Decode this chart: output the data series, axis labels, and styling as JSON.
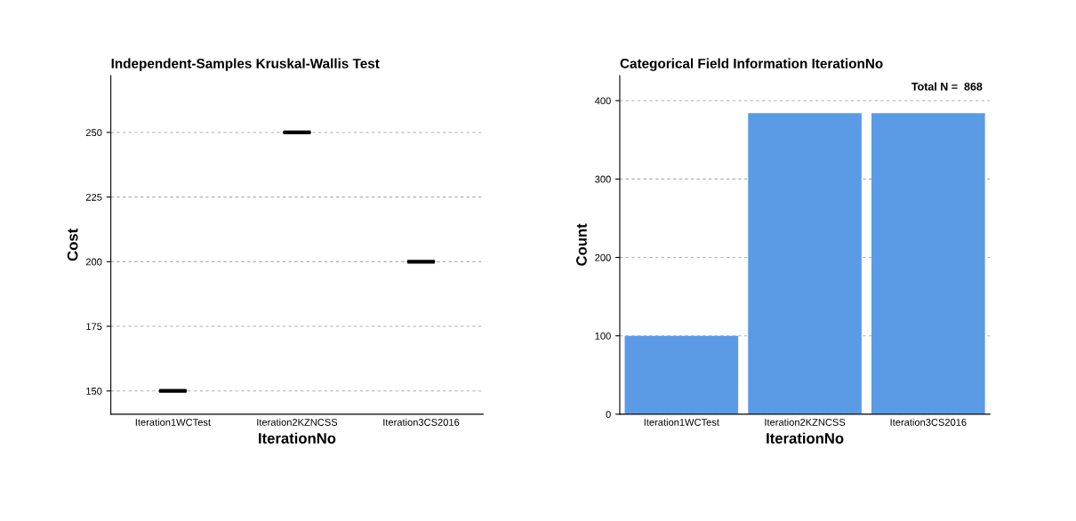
{
  "chart_data": [
    {
      "type": "box",
      "title": "Independent-Samples Kruskal-Wallis Test",
      "xlabel": "IterationNo",
      "ylabel": "Cost",
      "categories": [
        "Iteration1WCTest",
        "Iteration2KZNCSS",
        "Iteration3CS2016"
      ],
      "boxes": [
        {
          "low": 150,
          "q1": 150,
          "median": 150,
          "q3": 150,
          "high": 150
        },
        {
          "low": 250,
          "q1": 250,
          "median": 250,
          "q3": 250,
          "high": 250
        },
        {
          "low": 200,
          "q1": 200,
          "median": 200,
          "q3": 200,
          "high": 200
        }
      ],
      "ylim": [
        141,
        272
      ],
      "yticks": [
        150,
        175,
        200,
        225,
        250
      ],
      "grid": "y",
      "legend": false
    },
    {
      "type": "bar",
      "title": "Categorical Field Information IterationNo",
      "xlabel": "IterationNo",
      "ylabel": "Count",
      "categories": [
        "Iteration1WCTest",
        "Iteration2KZNCSS",
        "Iteration3CS2016"
      ],
      "values": [
        100,
        384,
        384
      ],
      "color": "#5b9be6",
      "ylim": [
        0,
        432
      ],
      "yticks": [
        0,
        100,
        200,
        300,
        400
      ],
      "grid": "y",
      "legend": false,
      "annotations": [
        "Total N =  868"
      ]
    }
  ]
}
